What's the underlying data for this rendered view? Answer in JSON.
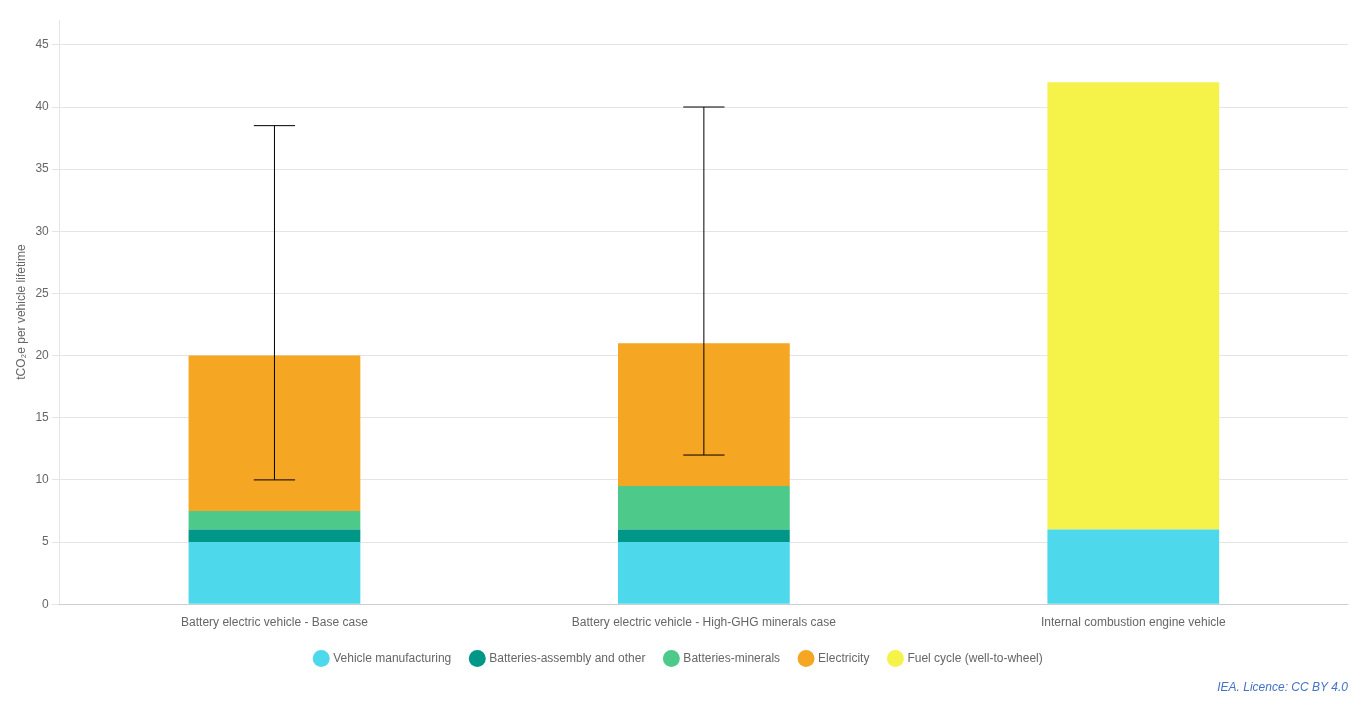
{
  "chart_data": {
    "type": "bar",
    "stacked": true,
    "categories": [
      "Battery electric vehicle - Base case",
      "Battery electric vehicle - High-GHG minerals case",
      "Internal combustion engine vehicle"
    ],
    "ylabel": "tCO₂e per vehicle lifetime",
    "ylim": [
      0,
      47
    ],
    "yticks": [
      0,
      5,
      10,
      15,
      20,
      25,
      30,
      35,
      40,
      45
    ],
    "grid": true,
    "legend": "bottom",
    "series": [
      {
        "name": "Vehicle manufacturing",
        "color": "#4DD8EC",
        "values": [
          5.0,
          5.0,
          6.0
        ]
      },
      {
        "name": "Batteries-assembly and other",
        "color": "#009688",
        "values": [
          1.0,
          1.0,
          0.0
        ]
      },
      {
        "name": "Batteries-minerals",
        "color": "#4DC98A",
        "values": [
          1.5,
          3.5,
          0.0
        ]
      },
      {
        "name": "Electricity",
        "color": "#F5A623",
        "values": [
          12.5,
          11.5,
          0.0
        ]
      },
      {
        "name": "Fuel cycle (well-to-wheel)",
        "color": "#F5F24A",
        "values": [
          0.0,
          0.0,
          36.0
        ]
      }
    ],
    "error_bars": {
      "low": [
        10.0,
        12.0,
        null
      ],
      "high": [
        38.5,
        40.0,
        null
      ]
    },
    "annotations": [
      "IEA. Licence: CC BY 4.0"
    ]
  }
}
